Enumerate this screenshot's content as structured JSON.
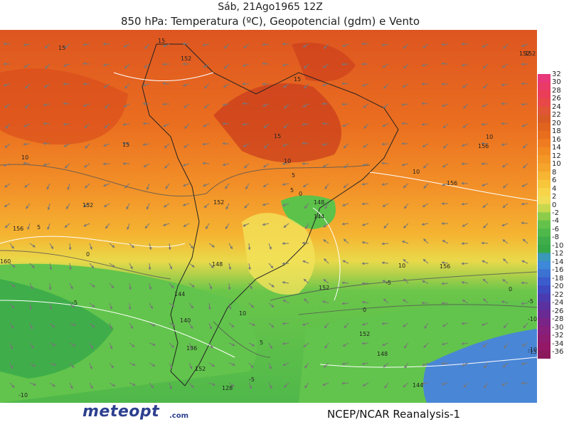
{
  "header": {
    "datetime": "Sáb, 21Ago1965 12Z",
    "product": "850 hPa: Temperatura (ºC), Geopotencial (gdm) e Vento"
  },
  "colorbar": {
    "unit": "ºC",
    "labels": [
      "32",
      "30",
      "28",
      "26",
      "24",
      "22",
      "20",
      "18",
      "16",
      "14",
      "12",
      "10",
      "8",
      "6",
      "4",
      "2",
      "0",
      "-2",
      "-4",
      "-6",
      "-8",
      "-10",
      "-12",
      "-14",
      "-16",
      "-18",
      "-20",
      "-22",
      "-24",
      "-26",
      "-28",
      "-30",
      "-32",
      "-34",
      "-36"
    ]
  },
  "map_labels": {
    "geopotential": [
      "152",
      "152",
      "156",
      "152",
      "156",
      "148",
      "144",
      "152",
      "148",
      "144",
      "140",
      "136",
      "152",
      "128",
      "152",
      "148",
      "144",
      "152",
      "156",
      "156",
      "160",
      "152"
    ],
    "temperature": [
      "15",
      "15",
      "15",
      "15",
      "15",
      "10",
      "10",
      "10",
      "10",
      "10",
      "5",
      "5",
      "0",
      "0",
      "-5",
      "-5",
      "-5",
      "-5",
      "-10",
      "-10",
      "-10",
      "-15",
      "0",
      "5",
      "0",
      "10",
      "5"
    ]
  },
  "footer": {
    "logo": "meteopt",
    "logo_suffix": ".com",
    "source": "NCEP/NCAR Reanalysis-1"
  },
  "colors": {
    "hot": "#d84a1c",
    "warm": "#f07a1f",
    "mild": "#f4a52a",
    "yellow": "#f8d84a",
    "green": "#5fc24a",
    "cold": "#4c8fd8"
  }
}
